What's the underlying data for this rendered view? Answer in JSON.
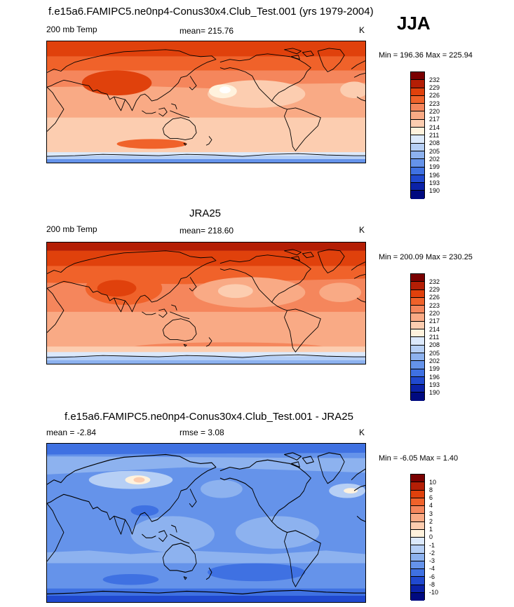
{
  "panels": [
    {
      "title": "f.e15a6.FAMIPC5.ne0np4-Conus30x4.Club_Test.001 (yrs 1979-2004)",
      "left_label": "200 mb Temp",
      "center_label": "mean= 215.76",
      "units": "K",
      "minmax": "Min = 196.36 Max = 225.94"
    },
    {
      "title": "JRA25",
      "left_label": "200 mb Temp",
      "center_label": "mean= 218.60",
      "units": "K",
      "minmax": "Min = 200.09 Max = 230.25"
    },
    {
      "title": "f.e15a6.FAMIPC5.ne0np4-Conus30x4.Club_Test.001 - JRA25",
      "left_label": "mean =  -2.84",
      "center_label": "rmse =   3.08",
      "units": "K",
      "minmax": "Min =  -6.05 Max =   1.40"
    }
  ],
  "season": "JJA",
  "colorbar_abs": {
    "labels": [
      "232",
      "229",
      "226",
      "223",
      "220",
      "217",
      "214",
      "211",
      "208",
      "205",
      "202",
      "199",
      "196",
      "193",
      "190"
    ],
    "colors": [
      "#7a0000",
      "#b41e05",
      "#e0410c",
      "#f0622a",
      "#f5865c",
      "#f9aa85",
      "#fccdb0",
      "#fff2dd",
      "#dce9fb",
      "#b6cff5",
      "#8db2ef",
      "#6593ea",
      "#3f71e2",
      "#2049cf",
      "#0b22a8",
      "#000a80"
    ]
  },
  "colorbar_diff": {
    "labels": [
      "10",
      "8",
      "6",
      "4",
      "3",
      "2",
      "1",
      "0",
      "-1",
      "-2",
      "-3",
      "-4",
      "-6",
      "-8",
      "-10"
    ],
    "colors": [
      "#7a0000",
      "#b41e05",
      "#e0410c",
      "#f0622a",
      "#f5865c",
      "#f9aa85",
      "#fccdb0",
      "#fff2dd",
      "#dce9fb",
      "#b6cff5",
      "#8db2ef",
      "#6593ea",
      "#3f71e2",
      "#2049cf",
      "#0b22a8",
      "#000a80"
    ]
  }
}
